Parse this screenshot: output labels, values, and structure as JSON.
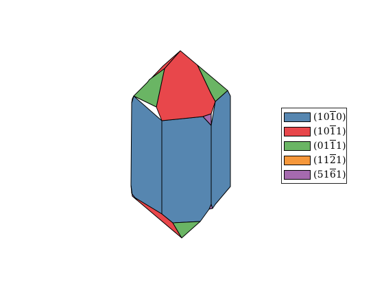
{
  "colors": {
    "blue": "#5686b0",
    "red": "#e8474b",
    "green": "#6ab564",
    "orange": "#f5973a",
    "purple": "#a56aae"
  },
  "legend": [
    {
      "label": "(1010)",
      "c1": "1",
      "c2": "0",
      "c3": "1",
      "c4": "0",
      "bar": 3,
      "color": "#5686b0"
    },
    {
      "label": "(1011)",
      "c1": "1",
      "c2": "0",
      "c3": "1",
      "c4": "1",
      "bar": 3,
      "color": "#e8474b"
    },
    {
      "label": "(0111)",
      "c1": "0",
      "c2": "1",
      "c3": "1",
      "c4": "1",
      "bar": 3,
      "color": "#6ab564"
    },
    {
      "label": "(1121)",
      "c1": "1",
      "c2": "1",
      "c3": "2",
      "c4": "1",
      "bar": 3,
      "color": "#f5973a"
    },
    {
      "label": "(5161)",
      "c1": "5",
      "c2": "1",
      "c3": "6",
      "c4": "1",
      "bar": 3,
      "color": "#a56aae"
    }
  ]
}
